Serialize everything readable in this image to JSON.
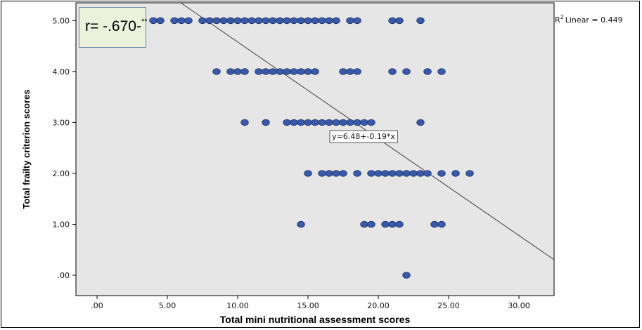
{
  "chart_data": {
    "type": "scatter",
    "xlabel": "Total mini nutritional assessment scores",
    "ylabel": "Total frailty criterion scores",
    "xlim": [
      -1.5,
      32.5
    ],
    "ylim": [
      -0.4,
      5.35
    ],
    "x_ticks": [
      {
        "value": 0,
        "label": ".00"
      },
      {
        "value": 5,
        "label": "5.00"
      },
      {
        "value": 10,
        "label": "10.00"
      },
      {
        "value": 15,
        "label": "15.00"
      },
      {
        "value": 20,
        "label": "20.00"
      },
      {
        "value": 25,
        "label": "25.00"
      },
      {
        "value": 30,
        "label": "30.00"
      }
    ],
    "y_ticks": [
      {
        "value": 0,
        "label": ".00"
      },
      {
        "value": 1,
        "label": "1.00"
      },
      {
        "value": 2,
        "label": "2.00"
      },
      {
        "value": 3,
        "label": "3.00"
      },
      {
        "value": 4,
        "label": "4.00"
      },
      {
        "value": 5,
        "label": "5.00"
      }
    ],
    "grid": false,
    "background_color": "#e6e6e6",
    "marker_color": "#3a5aa8",
    "marker_edge_color": "#1a2f6e",
    "line_color": "#404040",
    "points": [
      {
        "x": 4,
        "y": 5
      },
      {
        "x": 4.5,
        "y": 5
      },
      {
        "x": 5.5,
        "y": 5
      },
      {
        "x": 6,
        "y": 5
      },
      {
        "x": 6.5,
        "y": 5
      },
      {
        "x": 7.5,
        "y": 5
      },
      {
        "x": 8,
        "y": 5
      },
      {
        "x": 8.5,
        "y": 5
      },
      {
        "x": 9,
        "y": 5
      },
      {
        "x": 9.5,
        "y": 5
      },
      {
        "x": 10,
        "y": 5
      },
      {
        "x": 10.5,
        "y": 5
      },
      {
        "x": 11,
        "y": 5
      },
      {
        "x": 11.5,
        "y": 5
      },
      {
        "x": 12,
        "y": 5
      },
      {
        "x": 12.5,
        "y": 5
      },
      {
        "x": 13,
        "y": 5
      },
      {
        "x": 13.5,
        "y": 5
      },
      {
        "x": 14,
        "y": 5
      },
      {
        "x": 14.5,
        "y": 5
      },
      {
        "x": 15,
        "y": 5
      },
      {
        "x": 15.5,
        "y": 5
      },
      {
        "x": 16,
        "y": 5
      },
      {
        "x": 16.5,
        "y": 5
      },
      {
        "x": 17,
        "y": 5
      },
      {
        "x": 18,
        "y": 5
      },
      {
        "x": 18.5,
        "y": 5
      },
      {
        "x": 21,
        "y": 5
      },
      {
        "x": 21.5,
        "y": 5
      },
      {
        "x": 23,
        "y": 5
      },
      {
        "x": 8.5,
        "y": 4
      },
      {
        "x": 9.5,
        "y": 4
      },
      {
        "x": 10,
        "y": 4
      },
      {
        "x": 10.5,
        "y": 4
      },
      {
        "x": 11.5,
        "y": 4
      },
      {
        "x": 12,
        "y": 4
      },
      {
        "x": 12.5,
        "y": 4
      },
      {
        "x": 13,
        "y": 4
      },
      {
        "x": 13.5,
        "y": 4
      },
      {
        "x": 14,
        "y": 4
      },
      {
        "x": 14.5,
        "y": 4
      },
      {
        "x": 15,
        "y": 4
      },
      {
        "x": 15.5,
        "y": 4
      },
      {
        "x": 17.5,
        "y": 4
      },
      {
        "x": 18,
        "y": 4
      },
      {
        "x": 18.5,
        "y": 4
      },
      {
        "x": 21,
        "y": 4
      },
      {
        "x": 22,
        "y": 4
      },
      {
        "x": 23.5,
        "y": 4
      },
      {
        "x": 24.5,
        "y": 4
      },
      {
        "x": 10.5,
        "y": 3
      },
      {
        "x": 12,
        "y": 3
      },
      {
        "x": 13.5,
        "y": 3
      },
      {
        "x": 14,
        "y": 3
      },
      {
        "x": 14.5,
        "y": 3
      },
      {
        "x": 15,
        "y": 3
      },
      {
        "x": 15.5,
        "y": 3
      },
      {
        "x": 16,
        "y": 3
      },
      {
        "x": 16.5,
        "y": 3
      },
      {
        "x": 17,
        "y": 3
      },
      {
        "x": 17.5,
        "y": 3
      },
      {
        "x": 18,
        "y": 3
      },
      {
        "x": 18.5,
        "y": 3
      },
      {
        "x": 19,
        "y": 3
      },
      {
        "x": 19.5,
        "y": 3
      },
      {
        "x": 23,
        "y": 3
      },
      {
        "x": 15,
        "y": 2
      },
      {
        "x": 16,
        "y": 2
      },
      {
        "x": 16.5,
        "y": 2
      },
      {
        "x": 17,
        "y": 2
      },
      {
        "x": 17.5,
        "y": 2
      },
      {
        "x": 18.5,
        "y": 2
      },
      {
        "x": 19.5,
        "y": 2
      },
      {
        "x": 20,
        "y": 2
      },
      {
        "x": 20.5,
        "y": 2
      },
      {
        "x": 21,
        "y": 2
      },
      {
        "x": 21.5,
        "y": 2
      },
      {
        "x": 22,
        "y": 2
      },
      {
        "x": 22.5,
        "y": 2
      },
      {
        "x": 23,
        "y": 2
      },
      {
        "x": 23.5,
        "y": 2
      },
      {
        "x": 24.5,
        "y": 2
      },
      {
        "x": 25.5,
        "y": 2
      },
      {
        "x": 26.5,
        "y": 2
      },
      {
        "x": 14.5,
        "y": 1
      },
      {
        "x": 19,
        "y": 1
      },
      {
        "x": 19.5,
        "y": 1
      },
      {
        "x": 20.5,
        "y": 1
      },
      {
        "x": 21,
        "y": 1
      },
      {
        "x": 21.5,
        "y": 1
      },
      {
        "x": 24,
        "y": 1
      },
      {
        "x": 24.5,
        "y": 1
      },
      {
        "x": 22,
        "y": 0
      }
    ],
    "fit_line": {
      "intercept": 6.48,
      "slope": -0.19,
      "equation_label": "y=6.48+-0.19*x"
    },
    "r_squared_label": "Linear = 0.449",
    "r_squared_prefix": "R",
    "r_squared_superscript": "2",
    "correlation_label": "r= -.670-",
    "correlation_superscript": "**"
  }
}
